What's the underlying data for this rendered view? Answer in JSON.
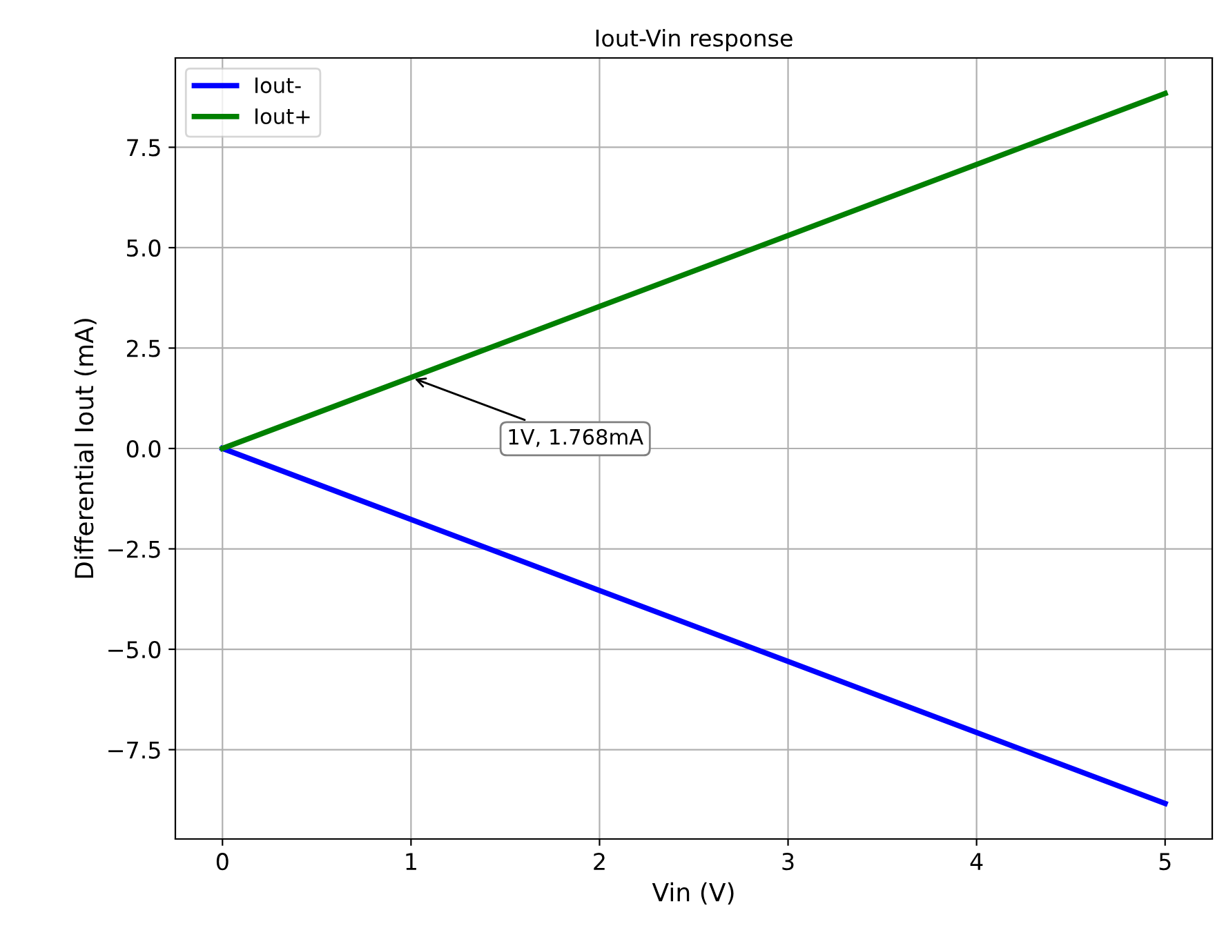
{
  "chart_data": {
    "type": "line",
    "title": "Iout-Vin response",
    "xlabel": "Vin (V)",
    "ylabel": "Differential Iout (mA)",
    "x": [
      0,
      1,
      2,
      3,
      4,
      5
    ],
    "series": [
      {
        "name": "Iout-",
        "color": "#0000ff",
        "values": [
          0,
          -1.768,
          -3.536,
          -5.304,
          -7.072,
          -8.84
        ]
      },
      {
        "name": "Iout+",
        "color": "#008000",
        "values": [
          0,
          1.768,
          3.536,
          5.304,
          7.072,
          8.84
        ]
      }
    ],
    "annotations": [
      {
        "text": "1V, 1.768mA",
        "x": 1,
        "y": 1.768
      }
    ],
    "xlim": [
      -0.25,
      5.25
    ],
    "ylim": [
      -9.724,
      9.724
    ],
    "xticks": [
      0,
      1,
      2,
      3,
      4,
      5
    ],
    "yticks": [
      {
        "value": -7.5,
        "label": "−7.5"
      },
      {
        "value": -5.0,
        "label": "−5.0"
      },
      {
        "value": -2.5,
        "label": "−2.5"
      },
      {
        "value": 0.0,
        "label": "0.0"
      },
      {
        "value": 2.5,
        "label": "2.5"
      },
      {
        "value": 5.0,
        "label": "5.0"
      },
      {
        "value": 7.5,
        "label": "7.5"
      }
    ],
    "grid": true,
    "legend": "top left",
    "marker": "none",
    "line_style": "solid"
  }
}
